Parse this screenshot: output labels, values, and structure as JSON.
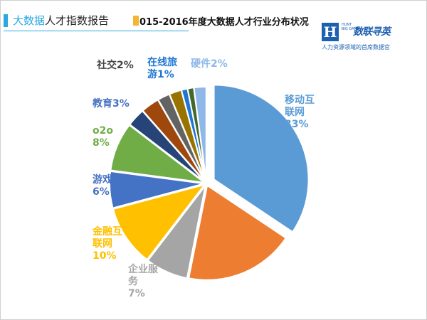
{
  "header": {
    "title_highlight": "大数据",
    "title_rest": "人才指数报告",
    "accent_color": "#29a9e0"
  },
  "logo": {
    "mark": "H",
    "small_text": "HUNT BIG DATA",
    "name": "数联寻英",
    "tagline": "人力资源领域的首席数据官"
  },
  "chart_data": {
    "type": "pie",
    "title": "015-2016年度大数据人才行业分布状况",
    "slices": [
      {
        "label": "移动互联网",
        "value": 33,
        "color": "#5b9bd5",
        "label_lines": [
          "移动互",
          "联网",
          "33%"
        ],
        "exploded": true
      },
      {
        "label": "金融互联网",
        "value": 18,
        "color": "#ed7d31",
        "label_lines": [],
        "exploded": false
      },
      {
        "label": "企业服务",
        "value": 7,
        "color": "#a5a5a5",
        "label_lines": [
          "企业服",
          "务",
          "7%"
        ],
        "exploded": false
      },
      {
        "label": "金融互联网",
        "value": 10,
        "color": "#ffc000",
        "label_lines": [
          "金融互",
          "联网",
          "10%"
        ],
        "exploded": false
      },
      {
        "label": "游戏",
        "value": 6,
        "color": "#4472c4",
        "label_lines": [
          "游戏",
          "6%"
        ],
        "exploded": false
      },
      {
        "label": "o2o",
        "value": 8,
        "color": "#70ad47",
        "label_lines": [
          "o2o",
          "8%"
        ],
        "exploded": false
      },
      {
        "label": "教育",
        "value": 3,
        "color": "#264478",
        "label_lines": [
          "教育3%"
        ],
        "exploded": false
      },
      {
        "label": "",
        "value": 3,
        "color": "#9e480e",
        "label_lines": [],
        "exploded": false
      },
      {
        "label": "社交",
        "value": 2,
        "color": "#636363",
        "label_lines": [
          "社交2%"
        ],
        "exploded": false
      },
      {
        "label": "",
        "value": 2,
        "color": "#997300",
        "label_lines": [],
        "exploded": false
      },
      {
        "label": "在线旅游",
        "value": 1,
        "color": "#1f77d4",
        "label_lines": [
          "在线旅",
          "游1%"
        ],
        "exploded": false
      },
      {
        "label": "",
        "value": 1,
        "color": "#43682b",
        "label_lines": [],
        "exploded": false
      },
      {
        "label": "硬件",
        "value": 2,
        "color": "#8fb8e8",
        "label_lines": [
          "硬件2%"
        ],
        "exploded": false
      }
    ]
  }
}
